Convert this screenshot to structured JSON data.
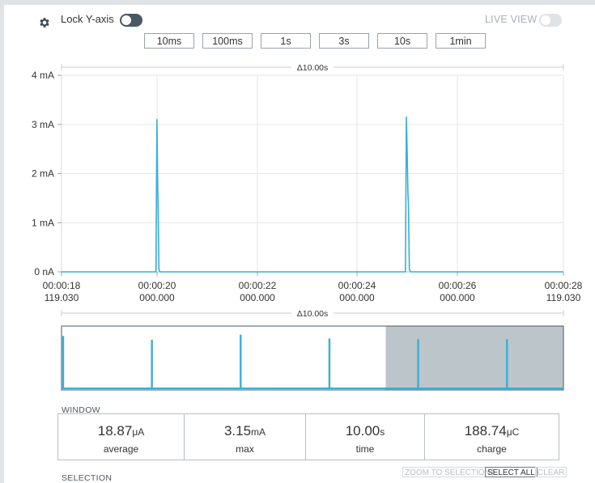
{
  "toolbar": {
    "lock_y_axis_label": "Lock Y-axis",
    "lock_y_axis_on": true,
    "live_view_label": "LIVE VIEW",
    "live_view_on": false,
    "window_buttons": [
      "10ms",
      "100ms",
      "1s",
      "3s",
      "10s",
      "1min"
    ]
  },
  "chart_data": {
    "type": "line",
    "delta_label": "Δ10.00s",
    "yticks": [
      "4 mA",
      "3 mA",
      "2 mA",
      "1 mA",
      "0 nA"
    ],
    "ylim_mA": [
      0,
      4
    ],
    "xlim_s": [
      18.119,
      28.119
    ],
    "xticks": [
      {
        "time": "00:00:18",
        "sub": "119.030"
      },
      {
        "time": "00:00:20",
        "sub": "000.000"
      },
      {
        "time": "00:00:22",
        "sub": "000.000"
      },
      {
        "time": "00:00:24",
        "sub": "000.000"
      },
      {
        "time": "00:00:26",
        "sub": "000.000"
      },
      {
        "time": "00:00:28",
        "sub": "119.030"
      }
    ],
    "series_color": "#3aafd4",
    "series": [
      {
        "x": [
          18.119,
          20.0,
          20.02,
          20.035,
          20.045,
          20.06,
          20.08,
          24.97,
          24.99,
          25.005,
          25.02,
          25.03,
          25.05,
          25.07,
          28.119
        ],
        "y": [
          0.0,
          0.0,
          3.1,
          1.75,
          1.3,
          0.05,
          0.0,
          0.0,
          3.15,
          2.5,
          1.6,
          1.4,
          0.05,
          0.0,
          0.0
        ]
      }
    ]
  },
  "overview": {
    "delta_label": "Δ10.00s",
    "spike_positions": [
      0.0,
      0.178,
      0.356,
      0.534,
      0.712,
      0.89
    ],
    "spike_heights": [
      0.82,
      0.76,
      0.84,
      0.78,
      0.77,
      0.77
    ],
    "selection_fraction": [
      0.646,
      1.0
    ]
  },
  "window": {
    "label": "WINDOW",
    "stats": [
      {
        "value": "18.87",
        "unit": "μA",
        "label": "average"
      },
      {
        "value": "3.15",
        "unit": "mA",
        "label": "max"
      },
      {
        "value": "10.00",
        "unit": "s",
        "label": "time"
      },
      {
        "value": "188.74",
        "unit": "μC",
        "label": "charge"
      }
    ]
  },
  "selection": {
    "label": "SELECTION",
    "zoom_label": "ZOOM TO SELECTION",
    "select_all_label": "SELECT ALL",
    "clear_label": "CLEAR"
  }
}
